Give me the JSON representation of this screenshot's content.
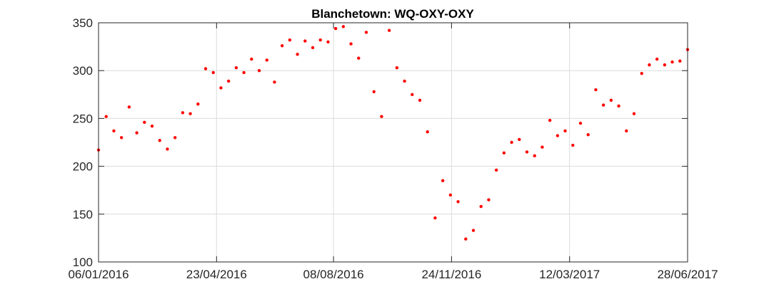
{
  "chart_data": {
    "type": "scatter",
    "title": "Blanchetown: WQ-OXY-OXY",
    "xlabel": "",
    "ylabel": "",
    "x_type": "date",
    "xlim": [
      "2016-01-06",
      "2017-06-28"
    ],
    "ylim": [
      100,
      350
    ],
    "yticks": [
      100,
      150,
      200,
      250,
      300,
      350
    ],
    "xticks": [
      "06/01/2016",
      "23/04/2016",
      "08/08/2016",
      "24/11/2016",
      "12/03/2017",
      "28/06/2017"
    ],
    "grid": true,
    "marker_color": "#ff0000",
    "series": [
      {
        "points": [
          [
            "2016-01-06",
            217
          ],
          [
            "2016-01-13",
            252
          ],
          [
            "2016-01-20",
            237
          ],
          [
            "2016-01-27",
            230
          ],
          [
            "2016-02-03",
            262
          ],
          [
            "2016-02-10",
            235
          ],
          [
            "2016-02-17",
            246
          ],
          [
            "2016-02-24",
            242
          ],
          [
            "2016-03-02",
            227
          ],
          [
            "2016-03-09",
            218
          ],
          [
            "2016-03-16",
            230
          ],
          [
            "2016-03-23",
            256
          ],
          [
            "2016-03-30",
            255
          ],
          [
            "2016-04-06",
            265
          ],
          [
            "2016-04-13",
            302
          ],
          [
            "2016-04-20",
            298
          ],
          [
            "2016-04-27",
            282
          ],
          [
            "2016-05-04",
            289
          ],
          [
            "2016-05-11",
            303
          ],
          [
            "2016-05-18",
            298
          ],
          [
            "2016-05-25",
            312
          ],
          [
            "2016-06-01",
            300
          ],
          [
            "2016-06-08",
            311
          ],
          [
            "2016-06-15",
            288
          ],
          [
            "2016-06-22",
            326
          ],
          [
            "2016-06-29",
            332
          ],
          [
            "2016-07-06",
            317
          ],
          [
            "2016-07-13",
            331
          ],
          [
            "2016-07-20",
            324
          ],
          [
            "2016-07-27",
            332
          ],
          [
            "2016-08-03",
            330
          ],
          [
            "2016-08-10",
            344
          ],
          [
            "2016-08-17",
            346
          ],
          [
            "2016-08-24",
            328
          ],
          [
            "2016-08-31",
            313
          ],
          [
            "2016-09-07",
            340
          ],
          [
            "2016-09-14",
            278
          ],
          [
            "2016-09-21",
            252
          ],
          [
            "2016-09-28",
            342
          ],
          [
            "2016-10-05",
            303
          ],
          [
            "2016-10-12",
            289
          ],
          [
            "2016-10-19",
            275
          ],
          [
            "2016-10-26",
            269
          ],
          [
            "2016-11-02",
            236
          ],
          [
            "2016-11-09",
            146
          ],
          [
            "2016-11-16",
            185
          ],
          [
            "2016-11-23",
            170
          ],
          [
            "2016-11-30",
            163
          ],
          [
            "2016-12-07",
            124
          ],
          [
            "2016-12-14",
            133
          ],
          [
            "2016-12-21",
            158
          ],
          [
            "2016-12-28",
            165
          ],
          [
            "2017-01-04",
            196
          ],
          [
            "2017-01-11",
            214
          ],
          [
            "2017-01-18",
            225
          ],
          [
            "2017-01-25",
            228
          ],
          [
            "2017-02-01",
            215
          ],
          [
            "2017-02-08",
            211
          ],
          [
            "2017-02-15",
            220
          ],
          [
            "2017-02-22",
            248
          ],
          [
            "2017-03-01",
            232
          ],
          [
            "2017-03-08",
            237
          ],
          [
            "2017-03-15",
            222
          ],
          [
            "2017-03-22",
            245
          ],
          [
            "2017-03-29",
            233
          ],
          [
            "2017-04-05",
            280
          ],
          [
            "2017-04-12",
            264
          ],
          [
            "2017-04-19",
            269
          ],
          [
            "2017-04-26",
            263
          ],
          [
            "2017-05-03",
            237
          ],
          [
            "2017-05-10",
            255
          ],
          [
            "2017-05-17",
            297
          ],
          [
            "2017-05-24",
            306
          ],
          [
            "2017-05-31",
            312
          ],
          [
            "2017-06-07",
            306
          ],
          [
            "2017-06-14",
            309
          ],
          [
            "2017-06-21",
            310
          ],
          [
            "2017-06-28",
            322
          ]
        ]
      }
    ]
  }
}
